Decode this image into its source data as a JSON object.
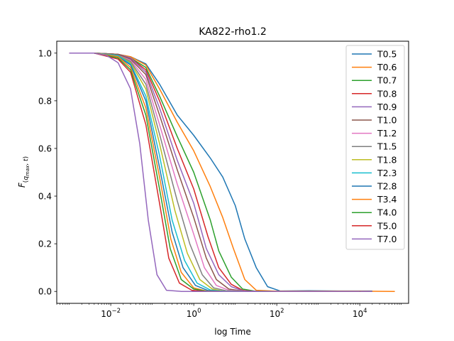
{
  "chart_data": {
    "type": "line",
    "title": "KA822-rho1.2",
    "xlabel": "log Time",
    "ylabel": "F(q_max, t)",
    "xscale": "log",
    "xlim": [
      0.0005,
      150000
    ],
    "ylim": [
      -0.05,
      1.05
    ],
    "xticks": [
      {
        "value": 0.01,
        "base": "10",
        "exp": "−2"
      },
      {
        "value": 1,
        "base": "10",
        "exp": "0"
      },
      {
        "value": 100,
        "base": "10",
        "exp": "2"
      },
      {
        "value": 10000,
        "base": "10",
        "exp": "4"
      }
    ],
    "yticks": [
      {
        "value": 0.0,
        "label": "0.0"
      },
      {
        "value": 0.2,
        "label": "0.2"
      },
      {
        "value": 0.4,
        "label": "0.4"
      },
      {
        "value": 0.6,
        "label": "0.6"
      },
      {
        "value": 0.8,
        "label": "0.8"
      },
      {
        "value": 1.0,
        "label": "1.0"
      }
    ],
    "legend_position": "top-right",
    "grid": false,
    "series": [
      {
        "name": "T0.5",
        "color": "#1f77b4",
        "x": [
          0.001,
          0.004,
          0.015,
          0.03,
          0.07,
          0.15,
          0.4,
          1,
          2.5,
          5,
          10,
          17,
          32,
          60,
          120,
          600,
          3000,
          20000
        ],
        "y": [
          1.0,
          1.0,
          0.995,
          0.985,
          0.955,
          0.87,
          0.74,
          0.655,
          0.56,
          0.48,
          0.36,
          0.22,
          0.1,
          0.02,
          0.002,
          0.003,
          0.002,
          0.002
        ]
      },
      {
        "name": "T0.6",
        "color": "#ff7f0e",
        "x": [
          0.001,
          0.004,
          0.015,
          0.03,
          0.07,
          0.15,
          0.4,
          1,
          2.5,
          5,
          9,
          17,
          32,
          100,
          1000,
          10000,
          70000
        ],
        "y": [
          1.0,
          1.0,
          0.995,
          0.985,
          0.95,
          0.85,
          0.71,
          0.59,
          0.44,
          0.31,
          0.18,
          0.05,
          0.005,
          0.001,
          0.001,
          0.001,
          0.0
        ]
      },
      {
        "name": "T0.7",
        "color": "#2ca02c",
        "x": [
          0.001,
          0.004,
          0.015,
          0.03,
          0.07,
          0.15,
          0.4,
          1,
          2.5,
          4,
          8,
          15,
          30,
          100,
          1000,
          20000
        ],
        "y": [
          1.0,
          1.0,
          0.995,
          0.98,
          0.94,
          0.82,
          0.65,
          0.5,
          0.3,
          0.17,
          0.06,
          0.01,
          0.001,
          0.0,
          0.0,
          0.0
        ]
      },
      {
        "name": "T0.8",
        "color": "#d62728",
        "x": [
          0.001,
          0.004,
          0.015,
          0.03,
          0.07,
          0.15,
          0.4,
          1,
          2.2,
          4,
          8,
          15,
          30,
          100,
          1000,
          10000
        ],
        "y": [
          1.0,
          1.0,
          0.995,
          0.98,
          0.93,
          0.8,
          0.6,
          0.43,
          0.23,
          0.1,
          0.03,
          0.005,
          0.0,
          0.0,
          0.0,
          0.0
        ]
      },
      {
        "name": "T0.9",
        "color": "#9467bd",
        "x": [
          0.001,
          0.004,
          0.015,
          0.03,
          0.07,
          0.15,
          0.4,
          1,
          2,
          4,
          8,
          15,
          40,
          200,
          2000,
          20000
        ],
        "y": [
          1.0,
          1.0,
          0.995,
          0.98,
          0.92,
          0.77,
          0.55,
          0.37,
          0.18,
          0.07,
          0.02,
          0.003,
          0.0,
          0.0,
          0.0,
          0.0
        ]
      },
      {
        "name": "T1.0",
        "color": "#8c564b",
        "x": [
          0.001,
          0.004,
          0.015,
          0.03,
          0.07,
          0.15,
          0.4,
          1,
          2,
          3.5,
          7,
          15,
          40,
          200,
          2000,
          10000
        ],
        "y": [
          1.0,
          1.0,
          0.995,
          0.975,
          0.91,
          0.74,
          0.51,
          0.31,
          0.14,
          0.05,
          0.01,
          0.002,
          0.0,
          0.0,
          0.0,
          0.0
        ]
      },
      {
        "name": "T1.2",
        "color": "#e377c2",
        "x": [
          0.001,
          0.004,
          0.015,
          0.03,
          0.07,
          0.15,
          0.4,
          1,
          1.8,
          3.5,
          7,
          20,
          100,
          1000,
          10000
        ],
        "y": [
          1.0,
          1.0,
          0.99,
          0.97,
          0.89,
          0.7,
          0.45,
          0.24,
          0.1,
          0.025,
          0.005,
          0.0,
          0.0,
          0.0,
          0.0
        ]
      },
      {
        "name": "T1.5",
        "color": "#7f7f7f",
        "x": [
          0.001,
          0.004,
          0.015,
          0.03,
          0.07,
          0.15,
          0.4,
          0.8,
          1.6,
          3,
          6,
          20,
          100,
          1000,
          10000
        ],
        "y": [
          1.0,
          1.0,
          0.99,
          0.965,
          0.87,
          0.66,
          0.38,
          0.2,
          0.07,
          0.015,
          0.003,
          0.0,
          0.0,
          0.0,
          0.0
        ]
      },
      {
        "name": "T1.8",
        "color": "#bcbd22",
        "x": [
          0.001,
          0.004,
          0.015,
          0.03,
          0.07,
          0.15,
          0.35,
          0.7,
          1.4,
          2.8,
          5,
          20,
          100,
          1000,
          10000
        ],
        "y": [
          1.0,
          1.0,
          0.99,
          0.96,
          0.85,
          0.62,
          0.34,
          0.16,
          0.05,
          0.01,
          0.002,
          0.0,
          0.0,
          0.0,
          0.0
        ]
      },
      {
        "name": "T2.3",
        "color": "#17becf",
        "x": [
          0.001,
          0.004,
          0.015,
          0.03,
          0.07,
          0.15,
          0.3,
          0.6,
          1.2,
          2.5,
          5,
          20,
          100,
          1000,
          10000
        ],
        "y": [
          1.0,
          1.0,
          0.99,
          0.955,
          0.82,
          0.57,
          0.3,
          0.13,
          0.035,
          0.006,
          0.001,
          0.0,
          0.0,
          0.0,
          0.0
        ]
      },
      {
        "name": "T2.8",
        "color": "#1f77b4",
        "x": [
          0.001,
          0.004,
          0.015,
          0.03,
          0.07,
          0.15,
          0.3,
          0.55,
          1.1,
          2.2,
          5,
          20,
          100,
          1000,
          10000
        ],
        "y": [
          1.0,
          1.0,
          0.985,
          0.95,
          0.8,
          0.52,
          0.25,
          0.1,
          0.025,
          0.004,
          0.0,
          0.0,
          0.0,
          0.0,
          0.0
        ]
      },
      {
        "name": "T3.4",
        "color": "#ff7f0e",
        "x": [
          0.001,
          0.004,
          0.015,
          0.03,
          0.07,
          0.15,
          0.28,
          0.5,
          1,
          2,
          5,
          20,
          100,
          1000,
          10000
        ],
        "y": [
          1.0,
          1.0,
          0.985,
          0.94,
          0.77,
          0.48,
          0.22,
          0.08,
          0.015,
          0.002,
          0.0,
          0.0,
          0.0,
          0.0,
          0.0
        ]
      },
      {
        "name": "T4.0",
        "color": "#2ca02c",
        "x": [
          0.001,
          0.004,
          0.015,
          0.03,
          0.07,
          0.15,
          0.27,
          0.5,
          1,
          2,
          5,
          20,
          100,
          1000,
          10000
        ],
        "y": [
          1.0,
          1.0,
          0.98,
          0.93,
          0.74,
          0.43,
          0.18,
          0.05,
          0.01,
          0.001,
          0.0,
          0.0,
          0.0,
          0.0,
          0.0
        ]
      },
      {
        "name": "T5.0",
        "color": "#d62728",
        "x": [
          0.001,
          0.004,
          0.015,
          0.03,
          0.07,
          0.15,
          0.25,
          0.45,
          0.9,
          2,
          5,
          20,
          100,
          1000,
          10000
        ],
        "y": [
          1.0,
          1.0,
          0.975,
          0.92,
          0.7,
          0.37,
          0.14,
          0.035,
          0.005,
          0.0,
          0.0,
          0.0,
          0.0,
          0.0,
          0.0
        ]
      },
      {
        "name": "T7.0",
        "color": "#9467bd",
        "x": [
          0.001,
          0.004,
          0.008,
          0.015,
          0.03,
          0.05,
          0.08,
          0.13,
          0.22,
          0.5,
          1,
          2,
          5,
          20,
          100,
          1000,
          10000
        ],
        "y": [
          1.0,
          1.0,
          0.99,
          0.96,
          0.85,
          0.62,
          0.3,
          0.07,
          0.005,
          0.0,
          0.0,
          0.0,
          0.0,
          0.0,
          0.0,
          0.0,
          0.0
        ]
      }
    ]
  }
}
